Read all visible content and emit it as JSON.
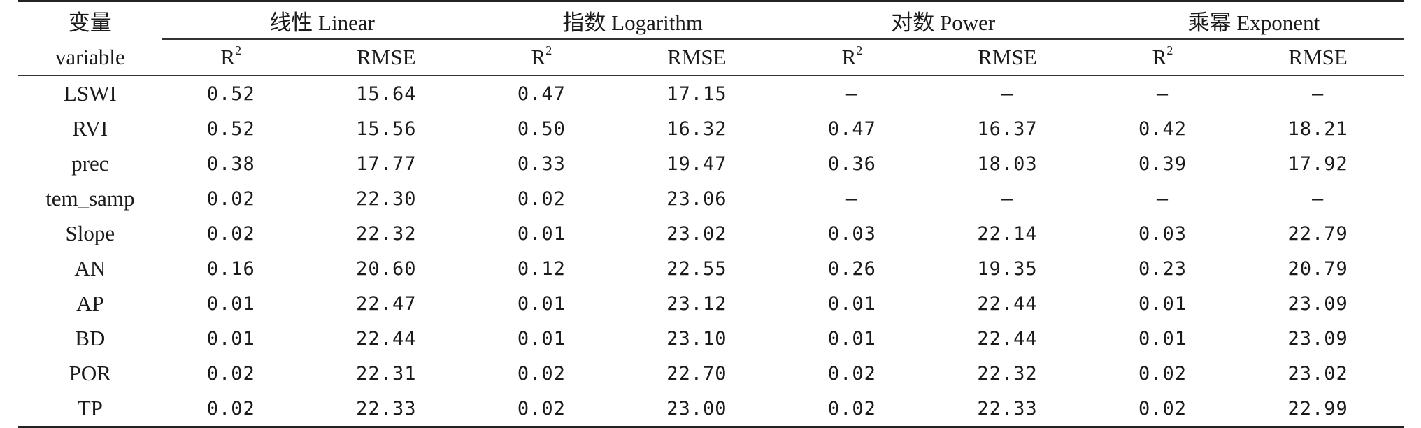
{
  "header": {
    "var_cn": "变量",
    "var_en": "variable",
    "groups": [
      {
        "label": "线性 Linear"
      },
      {
        "label": "指数 Logarithm"
      },
      {
        "label": "对数 Power"
      },
      {
        "label": "乘幂 Exponent"
      }
    ],
    "r2_base": "R",
    "r2_sup": "2",
    "rmse": "RMSE"
  },
  "rows": [
    {
      "variable": "LSWI",
      "values": [
        "0.52",
        "15.64",
        "0.47",
        "17.15",
        "—",
        "—",
        "—",
        "—"
      ]
    },
    {
      "variable": "RVI",
      "values": [
        "0.52",
        "15.56",
        "0.50",
        "16.32",
        "0.47",
        "16.37",
        "0.42",
        "18.21"
      ]
    },
    {
      "variable": "prec",
      "values": [
        "0.38",
        "17.77",
        "0.33",
        "19.47",
        "0.36",
        "18.03",
        "0.39",
        "17.92"
      ]
    },
    {
      "variable": "tem_samp",
      "values": [
        "0.02",
        "22.30",
        "0.02",
        "23.06",
        "—",
        "—",
        "—",
        "—"
      ]
    },
    {
      "variable": "Slope",
      "values": [
        "0.02",
        "22.32",
        "0.01",
        "23.02",
        "0.03",
        "22.14",
        "0.03",
        "22.79"
      ]
    },
    {
      "variable": "AN",
      "values": [
        "0.16",
        "20.60",
        "0.12",
        "22.55",
        "0.26",
        "19.35",
        "0.23",
        "20.79"
      ]
    },
    {
      "variable": "AP",
      "values": [
        "0.01",
        "22.47",
        "0.01",
        "23.12",
        "0.01",
        "22.44",
        "0.01",
        "23.09"
      ]
    },
    {
      "variable": "BD",
      "values": [
        "0.01",
        "22.44",
        "0.01",
        "23.10",
        "0.01",
        "22.44",
        "0.01",
        "23.09"
      ]
    },
    {
      "variable": "POR",
      "values": [
        "0.02",
        "22.31",
        "0.02",
        "22.70",
        "0.02",
        "22.32",
        "0.02",
        "23.02"
      ]
    },
    {
      "variable": "TP",
      "values": [
        "0.02",
        "22.33",
        "0.02",
        "23.00",
        "0.02",
        "22.33",
        "0.02",
        "22.99"
      ]
    }
  ]
}
